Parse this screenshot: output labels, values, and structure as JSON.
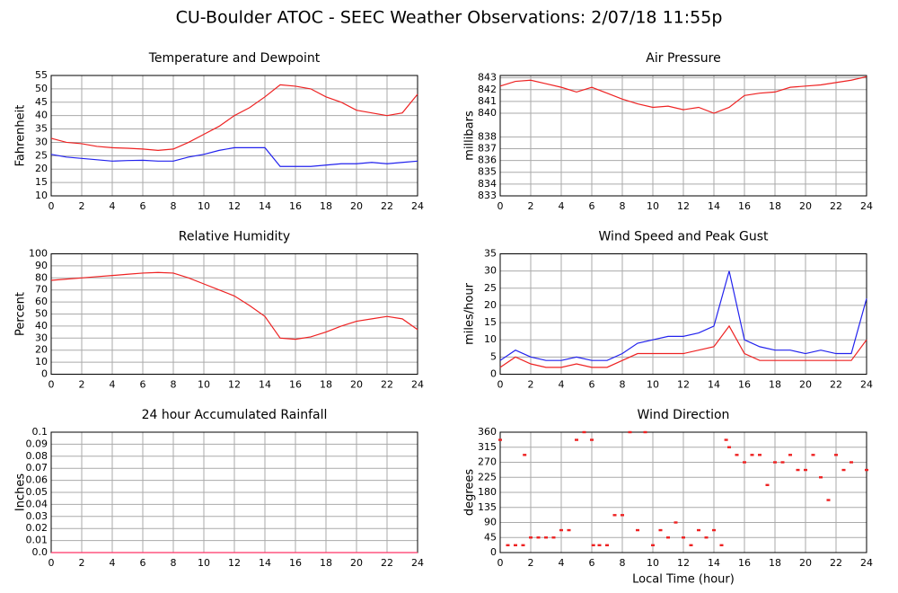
{
  "title": "CU-Boulder ATOC - SEEC Weather Observations: 2/07/18 11:55p",
  "chart_data": [
    {
      "type": "line",
      "title": "Temperature and Dewpoint",
      "ylabel": "Fahrenheit",
      "x": [
        0,
        1,
        2,
        3,
        4,
        5,
        6,
        7,
        8,
        9,
        10,
        11,
        12,
        13,
        14,
        15,
        16,
        17,
        18,
        19,
        20,
        21,
        22,
        23,
        24
      ],
      "series": [
        {
          "color": "#ee2222",
          "values": [
            31.5,
            30,
            29.5,
            28.5,
            28,
            27.8,
            27.5,
            27,
            27.5,
            30,
            33,
            36,
            40,
            43,
            47,
            51.5,
            51,
            50,
            47,
            45,
            42,
            41,
            40,
            41,
            48
          ]
        },
        {
          "color": "#2222ee",
          "values": [
            25.5,
            24.5,
            24,
            23.5,
            23,
            23.2,
            23.3,
            23,
            23,
            24.5,
            25.5,
            27,
            28,
            28,
            28,
            21,
            21,
            21,
            21.5,
            22,
            22,
            22.5,
            22,
            22.5,
            23
          ]
        }
      ],
      "xlim": [
        0,
        24
      ],
      "xticks": [
        0,
        2,
        4,
        6,
        8,
        10,
        12,
        14,
        16,
        18,
        20,
        22,
        24
      ],
      "ylim": [
        10,
        55
      ],
      "yticks": [
        10,
        15,
        20,
        25,
        30,
        35,
        40,
        45,
        50,
        55
      ],
      "grid": true
    },
    {
      "type": "line",
      "title": "Air Pressure",
      "ylabel": "millibars",
      "x": [
        0,
        1,
        2,
        3,
        4,
        5,
        6,
        7,
        8,
        9,
        10,
        11,
        12,
        13,
        14,
        15,
        16,
        17,
        18,
        19,
        20,
        21,
        22,
        23,
        24
      ],
      "series": [
        {
          "color": "#ee2222",
          "values": [
            842.3,
            842.7,
            842.8,
            842.5,
            842.2,
            841.8,
            842.2,
            841.7,
            841.2,
            840.8,
            840.5,
            840.6,
            840.3,
            840.5,
            840,
            840.5,
            841.5,
            841.7,
            841.8,
            842.2,
            842.3,
            842.4,
            842.6,
            842.8,
            843.1
          ]
        }
      ],
      "xlim": [
        0,
        24
      ],
      "xticks": [
        0,
        2,
        4,
        6,
        8,
        10,
        12,
        14,
        16,
        18,
        20,
        22,
        24
      ],
      "ylim": [
        833,
        843.2
      ],
      "yticks": [
        833,
        834,
        835,
        836,
        837,
        838,
        840,
        841,
        842,
        843
      ],
      "grid": true
    },
    {
      "type": "line",
      "title": "Relative Humidity",
      "ylabel": "Percent",
      "x": [
        0,
        1,
        2,
        3,
        4,
        5,
        6,
        7,
        8,
        9,
        10,
        11,
        12,
        13,
        14,
        15,
        16,
        17,
        18,
        19,
        20,
        21,
        22,
        23,
        24
      ],
      "series": [
        {
          "color": "#ee2222",
          "values": [
            78,
            79,
            80,
            81,
            82,
            83,
            84,
            84.5,
            84,
            80,
            75,
            70,
            65,
            57,
            48,
            30,
            29,
            31,
            35,
            40,
            44,
            46,
            48,
            46,
            37
          ]
        }
      ],
      "xlim": [
        0,
        24
      ],
      "xticks": [
        0,
        2,
        4,
        6,
        8,
        10,
        12,
        14,
        16,
        18,
        20,
        22,
        24
      ],
      "ylim": [
        0,
        100
      ],
      "yticks": [
        0,
        10,
        20,
        30,
        40,
        50,
        60,
        70,
        80,
        90,
        100
      ],
      "grid": true
    },
    {
      "type": "line",
      "title": "Wind Speed and Peak Gust",
      "ylabel": "miles/hour",
      "x": [
        0,
        1,
        2,
        3,
        4,
        5,
        6,
        7,
        8,
        9,
        10,
        11,
        12,
        13,
        14,
        15,
        16,
        17,
        18,
        19,
        20,
        21,
        22,
        23,
        24
      ],
      "series": [
        {
          "color": "#ee2222",
          "values": [
            2,
            5,
            3,
            2,
            2,
            3,
            2,
            2,
            4,
            6,
            6,
            6,
            6,
            7,
            8,
            14,
            6,
            4,
            4,
            4,
            4,
            4,
            4,
            4,
            10
          ]
        },
        {
          "color": "#2222ee",
          "values": [
            4,
            7,
            5,
            4,
            4,
            5,
            4,
            4,
            6,
            9,
            10,
            11,
            11,
            12,
            14,
            30,
            10,
            8,
            7,
            7,
            6,
            7,
            6,
            6,
            22
          ]
        }
      ],
      "xlim": [
        0,
        24
      ],
      "xticks": [
        0,
        2,
        4,
        6,
        8,
        10,
        12,
        14,
        16,
        18,
        20,
        22,
        24
      ],
      "ylim": [
        0,
        35
      ],
      "yticks": [
        0,
        5,
        10,
        15,
        20,
        25,
        30,
        35
      ],
      "grid": true
    },
    {
      "type": "line",
      "title": "24 hour Accumulated Rainfall",
      "ylabel": "Inches",
      "x": [
        0,
        24
      ],
      "series": [
        {
          "color": "#ff3366",
          "values": [
            0,
            0
          ]
        }
      ],
      "xlim": [
        0,
        24
      ],
      "xticks": [
        0,
        2,
        4,
        6,
        8,
        10,
        12,
        14,
        16,
        18,
        20,
        22,
        24
      ],
      "ylim": [
        0,
        0.1
      ],
      "yticks": [
        {
          "value": 0,
          "label": "0.0"
        },
        0.01,
        0.02,
        0.03,
        0.04,
        0.05,
        0.06,
        0.07,
        0.08,
        0.09,
        0.1
      ],
      "grid": true
    },
    {
      "type": "scatter",
      "title": "Wind Direction",
      "ylabel": "degrees",
      "xlabel": "Local Time (hour)",
      "x": [
        0,
        0.5,
        1,
        1.5,
        1.6,
        2,
        2.5,
        3,
        3.5,
        4,
        4.5,
        5,
        5.5,
        6,
        6.1,
        6.5,
        7,
        7.5,
        8,
        8.5,
        9,
        9.5,
        10,
        10.5,
        11,
        11.5,
        12,
        12.5,
        13,
        13.5,
        14,
        14.5,
        14.8,
        15,
        15.5,
        16,
        16.5,
        17,
        17.5,
        18,
        18.5,
        19,
        19.5,
        20,
        20.5,
        21,
        21.5,
        22,
        22.5,
        23,
        24
      ],
      "series": [
        {
          "color": "#ee2222",
          "values": [
            337,
            22,
            22,
            22,
            292,
            45,
            45,
            45,
            45,
            67,
            67,
            337,
            360,
            337,
            22,
            22,
            22,
            112,
            112,
            360,
            67,
            360,
            22,
            67,
            45,
            90,
            45,
            22,
            67,
            45,
            67,
            22,
            337,
            315,
            292,
            270,
            292,
            292,
            202,
            270,
            270,
            292,
            247,
            247,
            292,
            225,
            157,
            292,
            247,
            270,
            247
          ]
        }
      ],
      "xlim": [
        0,
        24
      ],
      "xticks": [
        0,
        2,
        4,
        6,
        8,
        10,
        12,
        14,
        16,
        18,
        20,
        22,
        24
      ],
      "ylim": [
        0,
        360
      ],
      "yticks": [
        0,
        45,
        90,
        135,
        180,
        225,
        270,
        315,
        360
      ],
      "grid": true
    }
  ]
}
